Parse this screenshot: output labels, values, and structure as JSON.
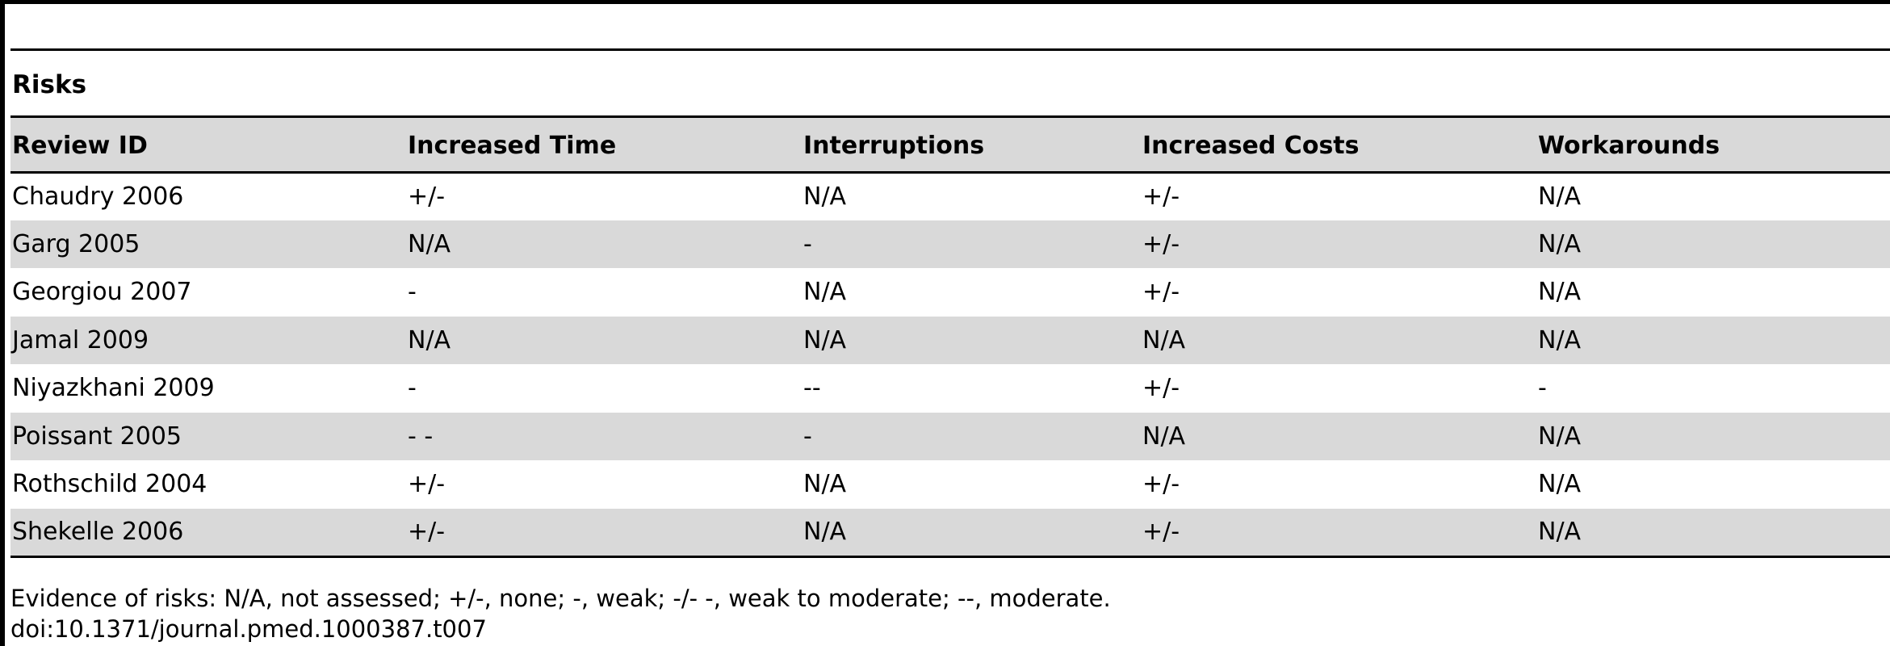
{
  "table": {
    "section_title": "Risks",
    "headers": [
      "Review ID",
      "Increased Time",
      "Interruptions",
      "Increased Costs",
      "Workarounds"
    ],
    "rows": [
      [
        "Chaudry 2006",
        "+/-",
        "N/A",
        "+/-",
        "N/A"
      ],
      [
        "Garg 2005",
        "N/A",
        "-",
        "+/-",
        "N/A"
      ],
      [
        "Georgiou 2007",
        "-",
        "N/A",
        "+/-",
        "N/A"
      ],
      [
        "Jamal 2009",
        "N/A",
        "N/A",
        "N/A",
        "N/A"
      ],
      [
        "Niyazkhani 2009",
        "-",
        "--",
        "+/-",
        "-"
      ],
      [
        "Poissant 2005",
        "- -",
        "-",
        "N/A",
        "N/A"
      ],
      [
        "Rothschild 2004",
        "+/-",
        "N/A",
        "+/-",
        "N/A"
      ],
      [
        "Shekelle 2006",
        "+/-",
        "N/A",
        "+/-",
        "N/A"
      ]
    ]
  },
  "footnote": {
    "legend": "Evidence of risks: N/A, not assessed; +/-, none; -, weak; -/- -, weak to moderate; --, moderate.",
    "doi": "doi:10.1371/journal.pmed.1000387.t007"
  }
}
